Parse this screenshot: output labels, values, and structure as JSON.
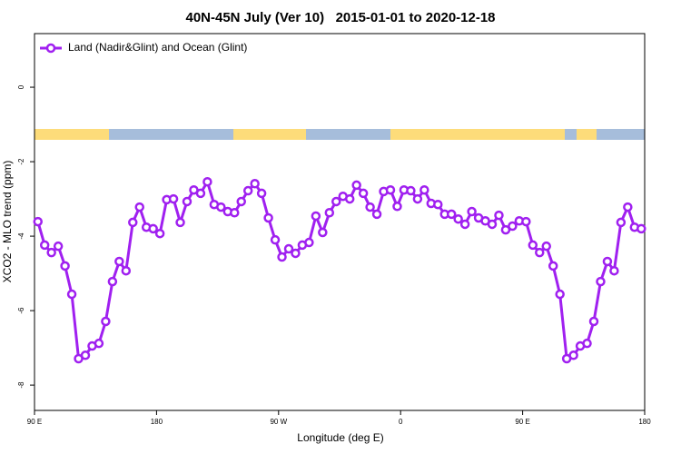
{
  "chart_data": {
    "type": "line",
    "title": "40N-45N July (Ver 10)   2015-01-01 to 2020-12-18",
    "x_label": "Longitude (deg E)",
    "y_label": "XCO2 - MLO trend (ppm)",
    "x": [
      92.5,
      97.5,
      102.5,
      107.5,
      112.5,
      117.5,
      122.5,
      127.5,
      132.5,
      137.5,
      142.5,
      147.5,
      152.5,
      157.5,
      162.5,
      167.5,
      172.5,
      177.5,
      182.5,
      187.5,
      192.5,
      197.5,
      202.5,
      207.5,
      212.5,
      217.5,
      222.5,
      227.5,
      232.5,
      237.5,
      242.5,
      247.5,
      252.5,
      257.5,
      262.5,
      267.5,
      272.5,
      277.5,
      282.5,
      287.5,
      292.5,
      297.5,
      302.5,
      307.5,
      312.5,
      317.5,
      322.5,
      327.5,
      332.5,
      337.5,
      342.5,
      347.5,
      352.5,
      357.5,
      362.5,
      367.5,
      372.5,
      377.5,
      382.5,
      387.5,
      392.5,
      397.5,
      402.5,
      407.5,
      412.5,
      417.5,
      422.5,
      427.5,
      432.5,
      437.5,
      442.5,
      447.5,
      452.5,
      457.5,
      462.5,
      467.5,
      472.5,
      477.5,
      482.5,
      487.5,
      492.5,
      497.5,
      502.5,
      507.5,
      512.5,
      517.5,
      522.5,
      527.5,
      532.5,
      537.5
    ],
    "series": [
      {
        "name": "Land (Nadir&Glint) and Ocean (Glint)",
        "color": "#a020f0",
        "values": [
          -3.61,
          -4.24,
          -4.44,
          -4.27,
          -4.8,
          -5.56,
          -7.29,
          -7.2,
          -6.95,
          -6.88,
          -6.29,
          -5.22,
          -4.68,
          -4.93,
          -3.63,
          -3.22,
          -3.76,
          -3.8,
          -3.93,
          -3.02,
          -3.0,
          -3.63,
          -3.07,
          -2.76,
          -2.85,
          -2.54,
          -3.15,
          -3.22,
          -3.34,
          -3.37,
          -3.07,
          -2.78,
          -2.59,
          -2.85,
          -3.51,
          -4.1,
          -4.56,
          -4.34,
          -4.46,
          -4.24,
          -4.17,
          -3.46,
          -3.9,
          -3.37,
          -3.07,
          -2.93,
          -3.0,
          -2.63,
          -2.85,
          -3.22,
          -3.41,
          -2.8,
          -2.76,
          -3.2,
          -2.76,
          -2.78,
          -3.0,
          -2.76,
          -3.12,
          -3.15,
          -3.41,
          -3.41,
          -3.54,
          -3.68,
          -3.34,
          -3.51,
          -3.59,
          -3.68,
          -3.44,
          -3.83,
          -3.73,
          -3.59,
          -3.61,
          -4.24,
          -4.44,
          -4.27,
          -4.8,
          -5.56,
          -7.29,
          -7.2,
          -6.95,
          -6.88,
          -6.29,
          -5.22,
          -4.68,
          -4.93,
          -3.63,
          -3.22,
          -3.76,
          -3.8
        ]
      }
    ],
    "xlim": [
      90,
      540
    ],
    "xticks": [
      {
        "value": 90,
        "label": "90 E"
      },
      180,
      {
        "value": 270,
        "label": "90 W"
      },
      {
        "value": 360,
        "label": "0"
      },
      {
        "value": 450,
        "label": "90 E"
      },
      {
        "value": 540,
        "label": "180"
      }
    ],
    "ylim": [
      -8.68,
      1.44
    ],
    "yticks": [
      -8,
      -6,
      -4,
      -2,
      0
    ],
    "legend": "topleft"
  }
}
